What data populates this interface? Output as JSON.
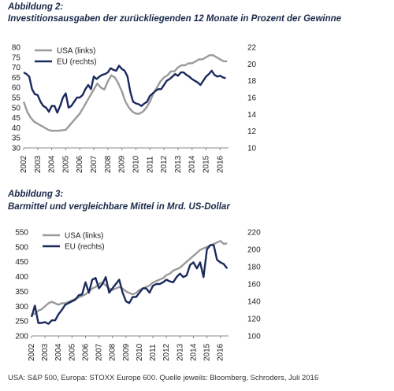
{
  "figure1": {
    "label": "Abbildung 2:",
    "title": "Investitionsausgaben der zurückliegenden 12 Monate in Prozent der Gewinne"
  },
  "figure2": {
    "label": "Abbildung 3:",
    "title": "Barmittel und vergleichbare Mittel in Mrd. US-Dollar"
  },
  "source": "USA: S&P 500, Europa: STOXX Europe 600. Quelle jeweils: Bloomberg, Schroders, Juli 2016",
  "colors": {
    "usa": "#9a9a9a",
    "eu": "#1b2a5e",
    "axis": "#888888"
  },
  "chart_data": [
    {
      "type": "line",
      "xlim": [
        2002,
        2016.6
      ],
      "x_ticks": [
        "2002",
        "2003",
        "2004",
        "2005",
        "2006",
        "2007",
        "2008",
        "2009",
        "2010",
        "2011",
        "2012",
        "2013",
        "2014",
        "2015",
        "2016"
      ],
      "y_left": {
        "lim": [
          30,
          80
        ],
        "ticks": [
          "30",
          "35",
          "40",
          "45",
          "50",
          "55",
          "60",
          "65",
          "70",
          "75",
          "80"
        ]
      },
      "y_right": {
        "lim": [
          10,
          22
        ],
        "ticks": [
          "10",
          "12",
          "14",
          "16",
          "18",
          "20",
          "22"
        ]
      },
      "legend_position": "top-left",
      "series": [
        {
          "name": "USA (links)",
          "axis": "left",
          "x": [
            2002.0,
            2002.25,
            2002.5,
            2002.75,
            2003.0,
            2003.25,
            2003.5,
            2003.75,
            2004.0,
            2004.5,
            2005.0,
            2005.25,
            2005.5,
            2005.75,
            2006.0,
            2006.25,
            2006.5,
            2006.75,
            2007.0,
            2007.25,
            2007.5,
            2007.75,
            2008.0,
            2008.25,
            2008.5,
            2008.75,
            2009.0,
            2009.25,
            2009.5,
            2009.75,
            2010.0,
            2010.25,
            2010.5,
            2010.75,
            2011.0,
            2011.25,
            2011.5,
            2011.75,
            2012.0,
            2012.25,
            2012.5,
            2012.75,
            2013.0,
            2013.25,
            2013.5,
            2013.75,
            2014.0,
            2014.25,
            2014.5,
            2014.75,
            2015.0,
            2015.25,
            2015.5,
            2015.75,
            2016.0,
            2016.25,
            2016.5
          ],
          "values": [
            53,
            48,
            45,
            43,
            42,
            41,
            40,
            39,
            38.5,
            38.5,
            39,
            41,
            43,
            45,
            47,
            50,
            53,
            56,
            59,
            62,
            60,
            59,
            63,
            66,
            65,
            62,
            58,
            53,
            50,
            48,
            47,
            47,
            48,
            50,
            53,
            57,
            60,
            63,
            65,
            66,
            68,
            68,
            70,
            71,
            71,
            72,
            72,
            73,
            74,
            74,
            75,
            76,
            76,
            75,
            74,
            73,
            73
          ]
        },
        {
          "name": "EU (rechts)",
          "axis": "right",
          "x": [
            2002.0,
            2002.2,
            2002.4,
            2002.6,
            2002.8,
            2003.0,
            2003.2,
            2003.4,
            2003.6,
            2003.8,
            2004.0,
            2004.2,
            2004.4,
            2004.6,
            2004.8,
            2005.0,
            2005.2,
            2005.4,
            2005.6,
            2005.8,
            2006.0,
            2006.2,
            2006.4,
            2006.6,
            2006.8,
            2007.0,
            2007.2,
            2007.4,
            2007.6,
            2007.8,
            2008.0,
            2008.2,
            2008.4,
            2008.6,
            2008.8,
            2009.0,
            2009.2,
            2009.4,
            2009.6,
            2009.8,
            2010.0,
            2010.2,
            2010.4,
            2010.6,
            2010.8,
            2011.0,
            2011.2,
            2011.4,
            2011.6,
            2011.8,
            2012.0,
            2012.2,
            2012.4,
            2012.6,
            2012.8,
            2013.0,
            2013.2,
            2013.4,
            2013.6,
            2013.8,
            2014.0,
            2014.2,
            2014.4,
            2014.6,
            2014.8,
            2015.0,
            2015.2,
            2015.4,
            2015.6,
            2015.8,
            2016.0,
            2016.2,
            2016.4
          ],
          "values": [
            19,
            18.8,
            18.5,
            17,
            16.4,
            16.3,
            15.5,
            15,
            14.8,
            14.3,
            15,
            15,
            14.2,
            15,
            16,
            16.5,
            14.8,
            15,
            15.5,
            16,
            16,
            16.3,
            17,
            17.5,
            17,
            18.5,
            18.2,
            18.5,
            18.7,
            18.8,
            19,
            19.5,
            19.3,
            19.2,
            19.8,
            19.4,
            19.2,
            18.5,
            16.7,
            15.5,
            15.3,
            15.2,
            15,
            15.3,
            15.5,
            16.2,
            16.5,
            16.8,
            17,
            17,
            17.5,
            18,
            18.2,
            18.5,
            18.8,
            18.6,
            19,
            19,
            18.7,
            18.5,
            18.2,
            18,
            17.8,
            17.5,
            18,
            18.5,
            18.8,
            19.2,
            18.7,
            18.5,
            18.6,
            18.4,
            18.3
          ]
        }
      ]
    },
    {
      "type": "line",
      "xlim": [
        2002,
        2016.6
      ],
      "x_ticks": [
        "2002",
        "2003",
        "2004",
        "2005",
        "2006",
        "2007",
        "2008",
        "2009",
        "2010",
        "2011",
        "2012",
        "2013",
        "2014",
        "2015",
        "2016"
      ],
      "y_left": {
        "lim": [
          200,
          550
        ],
        "ticks": [
          "200",
          "250",
          "300",
          "350",
          "400",
          "450",
          "500",
          "550"
        ]
      },
      "y_right": {
        "lim": [
          100,
          220
        ],
        "ticks": [
          "100",
          "120",
          "140",
          "160",
          "180",
          "200",
          "220"
        ]
      },
      "legend_position": "top-left",
      "series": [
        {
          "name": "USA (links)",
          "axis": "left",
          "x": [
            2002.0,
            2002.25,
            2002.5,
            2002.75,
            2003.0,
            2003.25,
            2003.5,
            2003.75,
            2004.0,
            2004.25,
            2004.5,
            2004.75,
            2005.0,
            2005.25,
            2005.5,
            2005.75,
            2006.0,
            2006.25,
            2006.5,
            2006.75,
            2007.0,
            2007.25,
            2007.5,
            2007.75,
            2008.0,
            2008.25,
            2008.5,
            2008.75,
            2009.0,
            2009.25,
            2009.5,
            2009.75,
            2010.0,
            2010.25,
            2010.5,
            2010.75,
            2011.0,
            2011.25,
            2011.5,
            2011.75,
            2012.0,
            2012.25,
            2012.5,
            2012.75,
            2013.0,
            2013.25,
            2013.5,
            2013.75,
            2014.0,
            2014.25,
            2014.5,
            2014.75,
            2015.0,
            2015.25,
            2015.5,
            2015.75,
            2016.0,
            2016.25,
            2016.5
          ],
          "values": [
            270,
            275,
            285,
            290,
            300,
            310,
            315,
            310,
            305,
            310,
            310,
            315,
            320,
            325,
            330,
            335,
            340,
            350,
            360,
            365,
            375,
            380,
            370,
            360,
            355,
            360,
            365,
            360,
            350,
            345,
            340,
            345,
            355,
            360,
            365,
            370,
            380,
            385,
            390,
            395,
            405,
            410,
            420,
            425,
            430,
            440,
            450,
            460,
            470,
            480,
            490,
            495,
            500,
            505,
            510,
            515,
            520,
            510,
            512
          ]
        },
        {
          "name": "EU (rechts)",
          "axis": "right",
          "x": [
            2002.0,
            2002.25,
            2002.5,
            2002.75,
            2003.0,
            2003.25,
            2003.5,
            2003.75,
            2004.0,
            2004.25,
            2004.5,
            2004.75,
            2005.0,
            2005.25,
            2005.5,
            2005.75,
            2006.0,
            2006.25,
            2006.5,
            2006.75,
            2007.0,
            2007.25,
            2007.5,
            2007.75,
            2008.0,
            2008.25,
            2008.5,
            2008.75,
            2009.0,
            2009.25,
            2009.5,
            2009.75,
            2010.0,
            2010.25,
            2010.5,
            2010.75,
            2011.0,
            2011.25,
            2011.5,
            2011.75,
            2012.0,
            2012.25,
            2012.5,
            2012.75,
            2013.0,
            2013.25,
            2013.5,
            2013.75,
            2014.0,
            2014.25,
            2014.5,
            2014.75,
            2015.0,
            2015.25,
            2015.5,
            2015.75,
            2016.0,
            2016.25,
            2016.5
          ],
          "values": [
            122,
            135,
            115,
            115,
            116,
            114,
            118,
            118,
            125,
            130,
            136,
            138,
            140,
            142,
            147,
            148,
            162,
            150,
            165,
            167,
            155,
            160,
            168,
            150,
            155,
            160,
            165,
            150,
            140,
            138,
            145,
            145,
            150,
            155,
            155,
            150,
            158,
            160,
            160,
            162,
            165,
            163,
            162,
            168,
            172,
            168,
            170,
            182,
            185,
            178,
            185,
            168,
            200,
            205,
            205,
            188,
            185,
            183,
            178
          ]
        }
      ]
    }
  ]
}
